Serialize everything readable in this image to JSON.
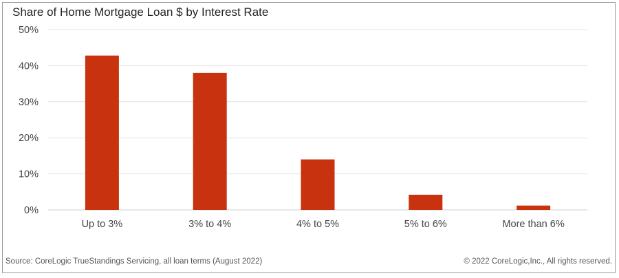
{
  "chart_data": {
    "type": "bar",
    "title": "Share of Home Mortgage Loan $ by Interest Rate",
    "categories": [
      "Up to 3%",
      "3% to 4%",
      "4% to 5%",
      "5% to 6%",
      "More than 6%"
    ],
    "values": [
      42.8,
      38.0,
      14.0,
      4.2,
      1.2
    ],
    "ylim": [
      0,
      50
    ],
    "yticks": [
      0,
      10,
      20,
      30,
      40,
      50
    ],
    "ytick_labels": [
      "0%",
      "10%",
      "20%",
      "30%",
      "40%",
      "50%"
    ],
    "xlabel": "",
    "ylabel": "",
    "bar_color": "#c8320e",
    "grid_color": "#e4e4e4",
    "grid": true,
    "legend": "none"
  },
  "footer": {
    "source": "Source: CoreLogic TrueStandings Servicing, all loan terms (August 2022)",
    "copyright": "© 2022 CoreLogic,Inc., All rights reserved."
  }
}
